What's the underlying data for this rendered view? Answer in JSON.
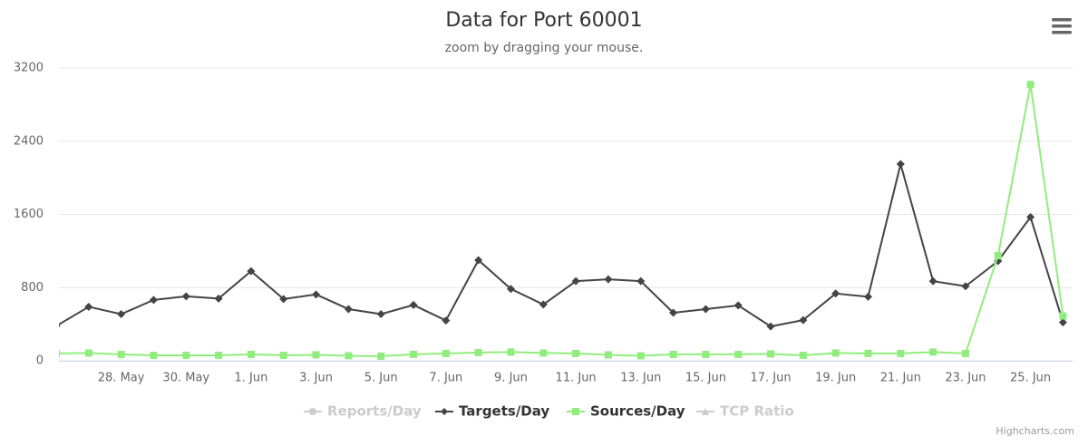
{
  "chart_data": {
    "type": "line",
    "title": "Data for Port 60001",
    "subtitle": "zoom by dragging your mouse.",
    "credits": "Highcharts.com",
    "categories": [
      null,
      null,
      "28. May",
      null,
      "30. May",
      null,
      "1. Jun",
      null,
      "3. Jun",
      null,
      "5. Jun",
      null,
      "7. Jun",
      null,
      "9. Jun",
      null,
      "11. Jun",
      null,
      "13. Jun",
      null,
      "15. Jun",
      null,
      "17. Jun",
      null,
      "19. Jun",
      null,
      "21. Jun",
      null,
      "23. Jun",
      null,
      "25. Jun",
      null
    ],
    "series": [
      {
        "name": "Reports/Day",
        "color": "#cccccc",
        "visible": false,
        "marker": "circle"
      },
      {
        "name": "Targets/Day",
        "color": "#434348",
        "visible": true,
        "marker": "diamond",
        "values": [
          380,
          590,
          510,
          665,
          705,
          680,
          980,
          675,
          725,
          565,
          510,
          610,
          440,
          1100,
          785,
          615,
          870,
          890,
          870,
          525,
          565,
          605,
          375,
          445,
          735,
          700,
          2150,
          870,
          815,
          1090,
          1570,
          420
        ]
      },
      {
        "name": "Sources/Day",
        "color": "#90ed7d",
        "visible": true,
        "marker": "square",
        "values": [
          80,
          85,
          70,
          60,
          60,
          60,
          70,
          60,
          65,
          55,
          50,
          70,
          80,
          90,
          95,
          85,
          80,
          65,
          55,
          70,
          70,
          70,
          75,
          60,
          85,
          80,
          80,
          95,
          80,
          1150,
          3020,
          490
        ]
      },
      {
        "name": "TCP Ratio",
        "color": "#cccccc",
        "visible": false,
        "marker": "triangle"
      }
    ],
    "ylim": [
      0,
      3200
    ],
    "yticks": [
      0,
      800,
      1600,
      2400,
      3200
    ],
    "grid": true
  }
}
